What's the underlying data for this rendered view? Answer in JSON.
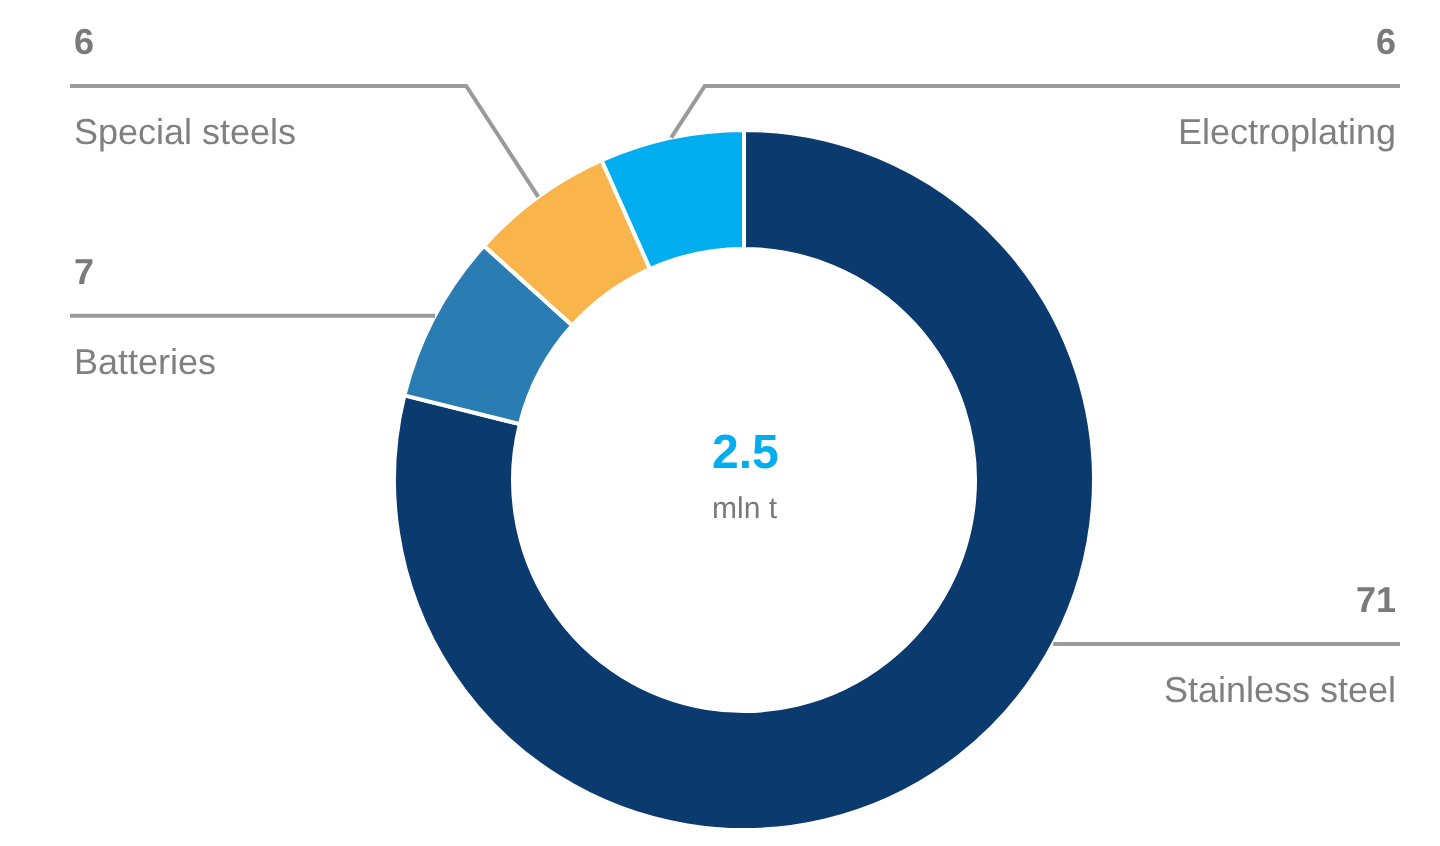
{
  "chart_data": {
    "type": "donut",
    "categories": [
      "Stainless steel",
      "Batteries",
      "Special steels",
      "Electroplating"
    ],
    "values": [
      71,
      7,
      6,
      6
    ],
    "colors": [
      "#0b3a6e",
      "#2a7db3",
      "#f9b54c",
      "#00adef"
    ],
    "data_labels": true,
    "annotations": [
      "2.5",
      "mln t"
    ]
  }
}
